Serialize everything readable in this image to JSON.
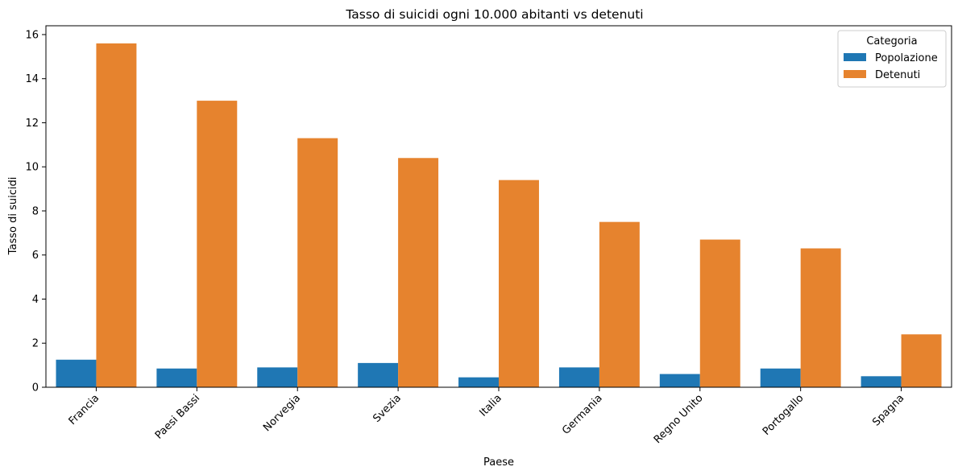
{
  "chart_data": {
    "type": "bar",
    "title": "Tasso di suicidi ogni 10.000 abitanti vs detenuti",
    "xlabel": "Paese",
    "ylabel": "Tasso di suicidi",
    "categories": [
      "Francia",
      "Paesi Bassi",
      "Norvegia",
      "Svezia",
      "Italia",
      "Germania",
      "Regno Unito",
      "Portogallo",
      "Spagna"
    ],
    "series": [
      {
        "name": "Popolazione",
        "color": "#1f77b4",
        "values": [
          1.25,
          0.85,
          0.9,
          1.1,
          0.45,
          0.9,
          0.6,
          0.85,
          0.5
        ]
      },
      {
        "name": "Detenuti",
        "color": "#e6832e",
        "values": [
          15.6,
          13.0,
          11.3,
          10.4,
          9.4,
          7.5,
          6.7,
          6.3,
          2.4
        ]
      }
    ],
    "ylim": [
      0,
      16.4
    ],
    "yticks": [
      0,
      2,
      4,
      6,
      8,
      10,
      12,
      14,
      16
    ],
    "grid": false,
    "legend": {
      "title": "Categoria",
      "position": "top-right"
    }
  }
}
